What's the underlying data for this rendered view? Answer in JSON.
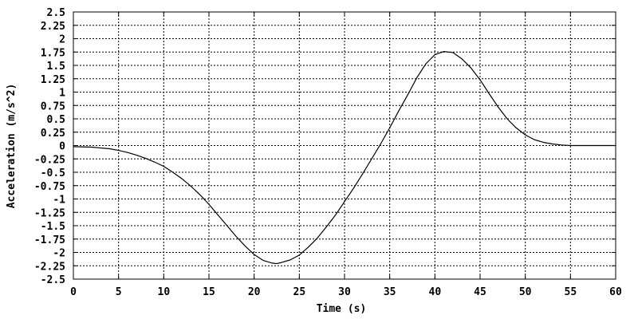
{
  "chart_data": {
    "type": "line",
    "title": "",
    "xlabel": "Time (s)",
    "ylabel": "Acceleration (m/s^2)",
    "xlim": [
      0,
      60
    ],
    "ylim": [
      -2.5,
      2.5
    ],
    "grid": true,
    "x_ticks": [
      "0",
      "5",
      "10",
      "15",
      "20",
      "25",
      "30",
      "35",
      "40",
      "45",
      "50",
      "55",
      "60"
    ],
    "y_ticks": [
      "2.5",
      "2.25",
      "2",
      "1.75",
      "1.5",
      "1.25",
      "1",
      "0.75",
      "0.5",
      "0.25",
      "0",
      "-0.25",
      "-0.5",
      "-0.75",
      "-1",
      "-1.25",
      "-1.5",
      "-1.75",
      "-2",
      "-2.25",
      "-2.5"
    ],
    "series": [
      {
        "color": "#000000",
        "x": [
          0,
          2,
          4,
          5,
          6,
          7,
          8,
          9,
          10,
          11,
          12,
          13,
          14,
          15,
          16,
          17,
          18,
          19,
          20,
          21,
          22,
          22.5,
          23,
          24,
          25,
          26,
          27,
          28,
          29,
          30,
          31,
          32,
          33,
          34,
          35,
          36,
          37,
          38,
          39,
          40,
          41,
          42,
          43,
          44,
          45,
          46,
          47,
          48,
          49,
          50,
          51,
          52,
          53,
          54,
          55,
          56,
          57,
          58,
          59,
          60
        ],
        "y": [
          -0.02,
          -0.03,
          -0.06,
          -0.09,
          -0.13,
          -0.18,
          -0.24,
          -0.31,
          -0.39,
          -0.5,
          -0.62,
          -0.76,
          -0.92,
          -1.1,
          -1.3,
          -1.5,
          -1.7,
          -1.88,
          -2.04,
          -2.15,
          -2.2,
          -2.21,
          -2.19,
          -2.14,
          -2.05,
          -1.9,
          -1.73,
          -1.52,
          -1.3,
          -1.05,
          -0.8,
          -0.53,
          -0.25,
          0.03,
          0.33,
          0.65,
          0.95,
          1.27,
          1.53,
          1.7,
          1.76,
          1.74,
          1.62,
          1.45,
          1.23,
          0.97,
          0.72,
          0.5,
          0.33,
          0.2,
          0.11,
          0.06,
          0.03,
          0.01,
          0,
          0,
          0,
          0,
          0,
          0
        ]
      }
    ]
  }
}
